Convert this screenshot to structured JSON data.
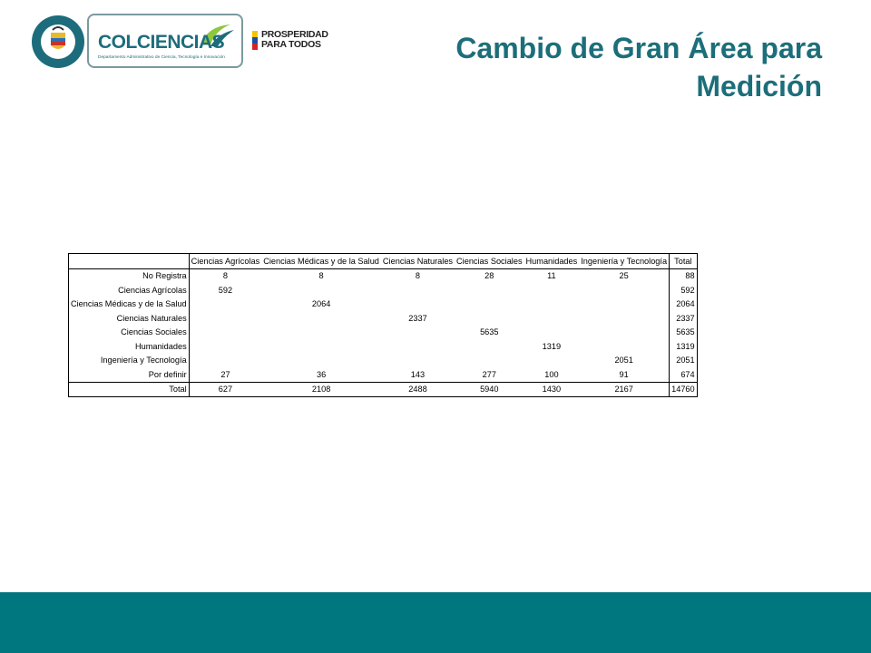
{
  "header": {
    "seal_text": "REPÚBLICA DE COLOMBIA",
    "brand_name": "COLCIENCIAS",
    "brand_subtitle": "Departamento Administrativo de Ciencia, Tecnología e Innovación",
    "prosperidad_line1": "PROSPERIDAD",
    "prosperidad_line2": "PARA TODOS",
    "colors": {
      "brand": "#1d6c7c",
      "title": "#1c6e7a",
      "footer": "#00767e"
    }
  },
  "slide": {
    "title_line1": "Cambio de Gran Área para",
    "title_line2": "Medición"
  },
  "table": {
    "columns": [
      "",
      "Ciencias Agrícolas",
      "Ciencias Médicas y de la Salud",
      "Ciencias Naturales",
      "Ciencias Sociales",
      "Humanidades",
      "Ingeniería y Tecnología",
      "Total"
    ],
    "rows": [
      {
        "label": "No Registra",
        "cells": [
          "8",
          "8",
          "8",
          "28",
          "11",
          "25"
        ],
        "total": "88"
      },
      {
        "label": "Ciencias Agrícolas",
        "cells": [
          "592",
          "",
          "",
          "",
          "",
          ""
        ],
        "total": "592"
      },
      {
        "label": "Ciencias Médicas y de la Salud",
        "cells": [
          "",
          "2064",
          "",
          "",
          "",
          ""
        ],
        "total": "2064"
      },
      {
        "label": "Ciencias Naturales",
        "cells": [
          "",
          "",
          "2337",
          "",
          "",
          ""
        ],
        "total": "2337"
      },
      {
        "label": "Ciencias Sociales",
        "cells": [
          "",
          "",
          "",
          "5635",
          "",
          ""
        ],
        "total": "5635"
      },
      {
        "label": "Humanidades",
        "cells": [
          "",
          "",
          "",
          "",
          "1319",
          ""
        ],
        "total": "1319"
      },
      {
        "label": "Ingeniería y Tecnología",
        "cells": [
          "",
          "",
          "",
          "",
          "",
          "2051"
        ],
        "total": "2051"
      },
      {
        "label": "Por definir",
        "cells": [
          "27",
          "36",
          "143",
          "277",
          "100",
          "91"
        ],
        "total": "674"
      }
    ],
    "total_row": {
      "label": "Total",
      "cells": [
        "627",
        "2108",
        "2488",
        "5940",
        "1430",
        "2167"
      ],
      "total": "14760"
    }
  }
}
